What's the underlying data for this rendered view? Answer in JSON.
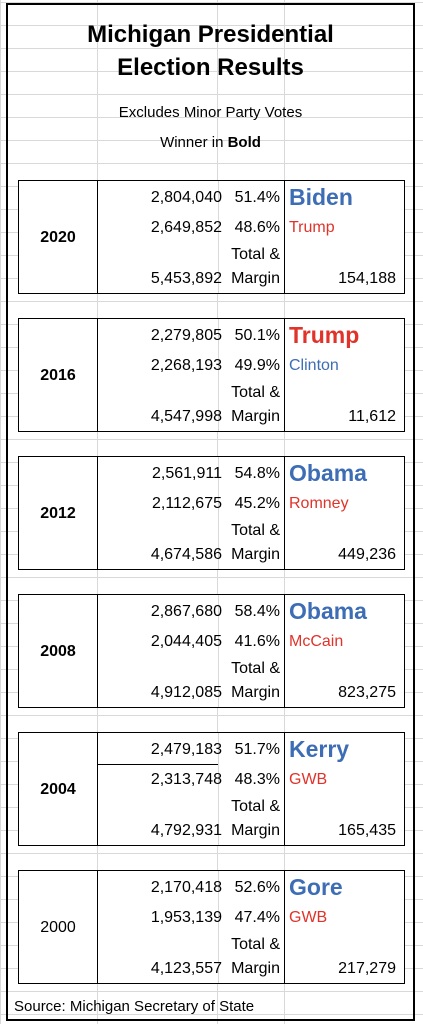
{
  "title_line1": "Michigan Presidential",
  "title_line2": "Election Results",
  "note1": "Excludes Minor Party Votes",
  "note2_prefix": "Winner in ",
  "note2_bold": "Bold",
  "total_margin_line1": "Total &",
  "total_margin_line2": "Margin",
  "source": "Source: Michigan Secretary of State",
  "colors": {
    "dem": "#3d6db5",
    "rep": "#e0332a"
  },
  "elections": [
    {
      "year": "2020",
      "w_votes": "2,804,040",
      "w_pct": "51.4%",
      "w_name": "Biden",
      "w_party": "dem",
      "l_votes": "2,649,852",
      "l_pct": "48.6%",
      "l_name": "Trump",
      "l_party": "rep",
      "total": "5,453,892",
      "margin": "154,188"
    },
    {
      "year": "2016",
      "w_votes": "2,279,805",
      "w_pct": "50.1%",
      "w_name": "Trump",
      "w_party": "rep",
      "l_votes": "2,268,193",
      "l_pct": "49.9%",
      "l_name": "Clinton",
      "l_party": "dem",
      "total": "4,547,998",
      "margin": "11,612"
    },
    {
      "year": "2012",
      "w_votes": "2,561,911",
      "w_pct": "54.8%",
      "w_name": "Obama",
      "w_party": "dem",
      "l_votes": "2,112,675",
      "l_pct": "45.2%",
      "l_name": "Romney",
      "l_party": "rep",
      "total": "4,674,586",
      "margin": "449,236"
    },
    {
      "year": "2008",
      "w_votes": "2,867,680",
      "w_pct": "58.4%",
      "w_name": "Obama",
      "w_party": "dem",
      "l_votes": "2,044,405",
      "l_pct": "41.6%",
      "l_name": "McCain",
      "l_party": "rep",
      "total": "4,912,085",
      "margin": "823,275"
    },
    {
      "year": "2004",
      "w_votes": "2,479,183",
      "w_pct": "51.7%",
      "w_name": "Kerry",
      "w_party": "dem",
      "l_votes": "2,313,748",
      "l_pct": "48.3%",
      "l_name": "GWB",
      "l_party": "rep",
      "total": "4,792,931",
      "margin": "165,435"
    },
    {
      "year": "2000",
      "w_votes": "2,170,418",
      "w_pct": "52.6%",
      "w_name": "Gore",
      "w_party": "dem",
      "l_votes": "1,953,139",
      "l_pct": "47.4%",
      "l_name": "GWB",
      "l_party": "rep",
      "total": "4,123,557",
      "margin": "217,279"
    }
  ]
}
